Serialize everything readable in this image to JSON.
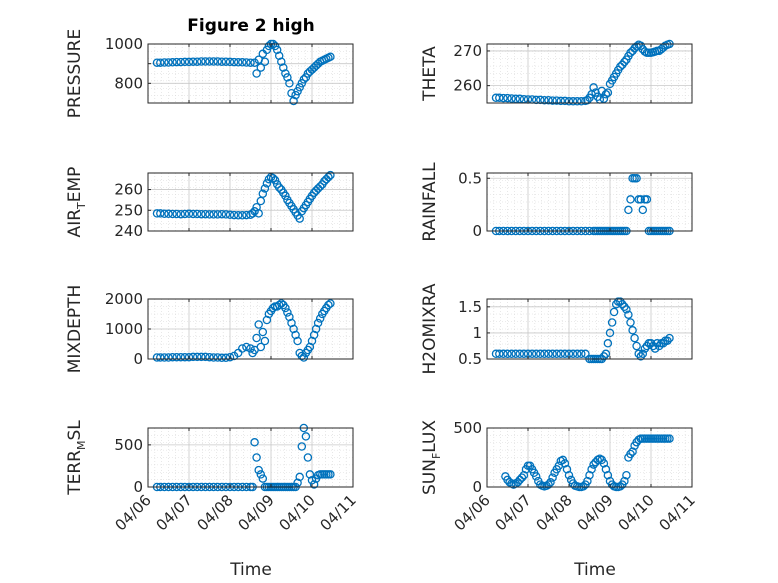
{
  "figure": {
    "title": "Figure 2 high",
    "xlabel": "Time",
    "marker_color": "#0072BD"
  },
  "chart_data": [
    {
      "type": "scatter",
      "ylabel": "PRESSURE",
      "ylim": [
        700,
        1000
      ],
      "yticks": [
        800,
        900,
        1000
      ],
      "ytick_labels": [
        "800",
        "",
        "1000"
      ],
      "xlim": [
        "04/06",
        "04/11"
      ],
      "xticks": [
        "04/06",
        "04/07",
        "04/08",
        "04/09",
        "04/10",
        "04/11"
      ],
      "grid": true,
      "minor_grid": true,
      "x": [
        6.22,
        6.3,
        6.4,
        6.5,
        6.6,
        6.7,
        6.8,
        6.9,
        7.0,
        7.1,
        7.2,
        7.3,
        7.4,
        7.5,
        7.6,
        7.7,
        7.8,
        7.9,
        8.0,
        8.1,
        8.2,
        8.3,
        8.4,
        8.5,
        8.6,
        8.65,
        8.7,
        8.75,
        8.8,
        8.85,
        8.9,
        8.95,
        9.0,
        9.05,
        9.1,
        9.15,
        9.2,
        9.25,
        9.3,
        9.35,
        9.4,
        9.45,
        9.5,
        9.55,
        9.6,
        9.65,
        9.7,
        9.75,
        9.8,
        9.85,
        9.9,
        9.95,
        10.0,
        10.05,
        10.1,
        10.15,
        10.2,
        10.25,
        10.3,
        10.35,
        10.4,
        10.45
      ],
      "y": [
        905,
        905,
        906,
        906,
        907,
        908,
        908,
        909,
        909,
        910,
        910,
        911,
        911,
        911,
        911,
        911,
        910,
        910,
        909,
        908,
        907,
        907,
        906,
        905,
        905,
        850,
        920,
        880,
        950,
        910,
        970,
        990,
        1000,
        1000,
        990,
        970,
        940,
        910,
        880,
        850,
        830,
        800,
        750,
        710,
        740,
        760,
        780,
        800,
        820,
        830,
        850,
        860,
        870,
        880,
        890,
        900,
        910,
        915,
        920,
        925,
        930,
        935
      ]
    },
    {
      "type": "scatter",
      "ylabel": "THETA",
      "ylim": [
        255,
        272
      ],
      "yticks": [
        260,
        270
      ],
      "ytick_labels": [
        "260",
        "270"
      ],
      "xlim": [
        "04/06",
        "04/11"
      ],
      "xticks": [
        "04/06",
        "04/07",
        "04/08",
        "04/09",
        "04/10",
        "04/11"
      ],
      "grid": true,
      "minor_grid": true,
      "x": [
        6.22,
        6.3,
        6.4,
        6.5,
        6.6,
        6.7,
        6.8,
        6.9,
        7.0,
        7.1,
        7.2,
        7.3,
        7.4,
        7.5,
        7.6,
        7.7,
        7.8,
        7.9,
        8.0,
        8.1,
        8.2,
        8.3,
        8.4,
        8.45,
        8.5,
        8.55,
        8.6,
        8.65,
        8.7,
        8.75,
        8.8,
        8.85,
        8.9,
        8.95,
        9.0,
        9.05,
        9.1,
        9.15,
        9.2,
        9.25,
        9.3,
        9.35,
        9.4,
        9.45,
        9.5,
        9.55,
        9.6,
        9.65,
        9.7,
        9.75,
        9.8,
        9.85,
        9.9,
        9.95,
        10.0,
        10.05,
        10.1,
        10.15,
        10.2,
        10.25,
        10.3,
        10.35,
        10.4,
        10.45
      ],
      "y": [
        256.5,
        256.5,
        256.4,
        256.4,
        256.3,
        256.2,
        256.2,
        256.1,
        256.0,
        256.0,
        255.9,
        255.9,
        255.8,
        255.8,
        255.7,
        255.7,
        255.6,
        255.6,
        255.5,
        255.5,
        255.5,
        255.5,
        255.6,
        255.8,
        256.5,
        257.5,
        259.5,
        258.0,
        256.8,
        256.0,
        258.5,
        256.2,
        257.5,
        258.0,
        260.5,
        261.5,
        262.5,
        263.5,
        264.5,
        265.5,
        266.0,
        266.8,
        267.5,
        268.5,
        269.5,
        270.0,
        270.8,
        271.3,
        271.8,
        271.5,
        270.5,
        269.8,
        269.5,
        269.5,
        269.5,
        269.6,
        269.8,
        270.0,
        270.0,
        270.5,
        271.0,
        271.5,
        271.8,
        272.0
      ]
    },
    {
      "type": "scatter",
      "ylabel": "AIR_TEMP",
      "ylim": [
        240,
        268
      ],
      "yticks": [
        240,
        250,
        260
      ],
      "ytick_labels": [
        "240",
        "250",
        "260"
      ],
      "xlim": [
        "04/06",
        "04/11"
      ],
      "xticks": [
        "04/06",
        "04/07",
        "04/08",
        "04/09",
        "04/10",
        "04/11"
      ],
      "grid": true,
      "minor_grid": true,
      "x": [
        6.22,
        6.3,
        6.4,
        6.5,
        6.6,
        6.7,
        6.8,
        6.9,
        7.0,
        7.1,
        7.2,
        7.3,
        7.4,
        7.5,
        7.6,
        7.7,
        7.8,
        7.9,
        8.0,
        8.1,
        8.2,
        8.3,
        8.4,
        8.5,
        8.55,
        8.6,
        8.65,
        8.7,
        8.75,
        8.8,
        8.85,
        8.9,
        8.95,
        9.0,
        9.05,
        9.1,
        9.15,
        9.2,
        9.25,
        9.3,
        9.35,
        9.4,
        9.45,
        9.5,
        9.55,
        9.6,
        9.65,
        9.7,
        9.75,
        9.8,
        9.85,
        9.9,
        9.95,
        10.0,
        10.05,
        10.1,
        10.15,
        10.2,
        10.25,
        10.3,
        10.35,
        10.4,
        10.45
      ],
      "y": [
        248.5,
        248.5,
        248.3,
        248.3,
        248.2,
        248.2,
        248.1,
        248.2,
        248.3,
        248.2,
        248.2,
        248.1,
        248.1,
        248.0,
        248.0,
        248.0,
        248.1,
        248.0,
        247.8,
        247.7,
        247.6,
        247.6,
        247.7,
        247.8,
        248.5,
        249.5,
        251.5,
        248.5,
        254.5,
        258.0,
        260.5,
        263.0,
        265.0,
        266.0,
        265.5,
        264.5,
        262.5,
        261.0,
        260.0,
        258.5,
        257.0,
        255.0,
        253.5,
        252.0,
        250.5,
        249.0,
        247.5,
        246.0,
        249.5,
        251.0,
        252.5,
        254.0,
        255.5,
        257.0,
        258.5,
        259.5,
        260.5,
        261.5,
        262.5,
        264.0,
        265.0,
        266.0,
        267.0
      ]
    },
    {
      "type": "scatter",
      "ylabel": "RAINFALL",
      "ylim": [
        0,
        0.55
      ],
      "yticks": [
        0,
        0.5
      ],
      "ytick_labels": [
        "0",
        "0.5"
      ],
      "xlim": [
        "04/06",
        "04/11"
      ],
      "xticks": [
        "04/06",
        "04/07",
        "04/08",
        "04/09",
        "04/10",
        "04/11"
      ],
      "grid": true,
      "minor_grid": true,
      "x": [
        6.22,
        6.3,
        6.4,
        6.5,
        6.6,
        6.7,
        6.8,
        6.9,
        7.0,
        7.1,
        7.2,
        7.3,
        7.4,
        7.5,
        7.6,
        7.7,
        7.8,
        7.9,
        8.0,
        8.1,
        8.2,
        8.3,
        8.4,
        8.5,
        8.6,
        8.65,
        8.7,
        8.75,
        8.8,
        8.85,
        8.9,
        8.95,
        9.0,
        9.05,
        9.1,
        9.15,
        9.2,
        9.25,
        9.3,
        9.35,
        9.4,
        9.45,
        9.5,
        9.55,
        9.6,
        9.65,
        9.7,
        9.75,
        9.8,
        9.85,
        9.9,
        9.95,
        10.0,
        10.05,
        10.1,
        10.15,
        10.2,
        10.25,
        10.3,
        10.35,
        10.4,
        10.45
      ],
      "y": [
        0,
        0,
        0,
        0,
        0,
        0,
        0,
        0,
        0,
        0,
        0,
        0,
        0,
        0,
        0,
        0,
        0,
        0,
        0,
        0,
        0,
        0,
        0,
        0,
        0,
        0,
        0,
        0,
        0,
        0,
        0,
        0,
        0,
        0,
        0,
        0,
        0,
        0,
        0,
        0,
        0,
        0.2,
        0.3,
        0.5,
        0.5,
        0.5,
        0.3,
        0.3,
        0.2,
        0.3,
        0.3,
        0,
        0,
        0,
        0,
        0,
        0,
        0,
        0,
        0,
        0,
        0
      ]
    },
    {
      "type": "scatter",
      "ylabel": "MIXDEPTH",
      "ylim": [
        0,
        2000
      ],
      "yticks": [
        0,
        1000,
        2000
      ],
      "ytick_labels": [
        "0",
        "1000",
        "2000"
      ],
      "xlim": [
        "04/06",
        "04/11"
      ],
      "xticks": [
        "04/06",
        "04/07",
        "04/08",
        "04/09",
        "04/10",
        "04/11"
      ],
      "grid": true,
      "minor_grid": true,
      "x": [
        6.22,
        6.3,
        6.4,
        6.5,
        6.6,
        6.7,
        6.8,
        6.9,
        7.0,
        7.1,
        7.2,
        7.3,
        7.4,
        7.5,
        7.6,
        7.7,
        7.8,
        7.9,
        8.0,
        8.1,
        8.2,
        8.3,
        8.4,
        8.5,
        8.55,
        8.6,
        8.65,
        8.7,
        8.75,
        8.8,
        8.85,
        8.9,
        8.95,
        9.0,
        9.05,
        9.1,
        9.15,
        9.2,
        9.25,
        9.3,
        9.35,
        9.4,
        9.45,
        9.5,
        9.55,
        9.6,
        9.65,
        9.7,
        9.75,
        9.8,
        9.85,
        9.9,
        9.95,
        10.0,
        10.05,
        10.1,
        10.15,
        10.2,
        10.25,
        10.3,
        10.35,
        10.4,
        10.45
      ],
      "y": [
        50,
        50,
        50,
        50,
        60,
        60,
        60,
        60,
        60,
        70,
        70,
        70,
        70,
        60,
        50,
        50,
        40,
        40,
        60,
        100,
        200,
        350,
        400,
        350,
        200,
        300,
        700,
        1150,
        400,
        900,
        600,
        1300,
        1500,
        1600,
        1700,
        1750,
        1750,
        1800,
        1850,
        1800,
        1700,
        1550,
        1400,
        1200,
        1000,
        800,
        600,
        200,
        100,
        50,
        200,
        300,
        400,
        600,
        800,
        1000,
        1200,
        1350,
        1500,
        1600,
        1700,
        1800,
        1850
      ]
    },
    {
      "type": "scatter",
      "ylabel": "H2OMIXRA",
      "ylim": [
        0.5,
        1.65
      ],
      "yticks": [
        0.5,
        1,
        1.5
      ],
      "ytick_labels": [
        "0.5",
        "1",
        "1.5"
      ],
      "xlim": [
        "04/06",
        "04/11"
      ],
      "xticks": [
        "04/06",
        "04/07",
        "04/08",
        "04/09",
        "04/10",
        "04/11"
      ],
      "grid": true,
      "minor_grid": true,
      "x": [
        6.22,
        6.3,
        6.4,
        6.5,
        6.6,
        6.7,
        6.8,
        6.9,
        7.0,
        7.1,
        7.2,
        7.3,
        7.4,
        7.5,
        7.6,
        7.7,
        7.8,
        7.9,
        8.0,
        8.1,
        8.2,
        8.3,
        8.4,
        8.5,
        8.55,
        8.6,
        8.65,
        8.7,
        8.75,
        8.8,
        8.85,
        8.9,
        8.95,
        9.0,
        9.05,
        9.1,
        9.15,
        9.2,
        9.25,
        9.3,
        9.35,
        9.4,
        9.45,
        9.5,
        9.55,
        9.6,
        9.65,
        9.7,
        9.75,
        9.8,
        9.85,
        9.9,
        9.95,
        10.0,
        10.05,
        10.1,
        10.15,
        10.2,
        10.25,
        10.3,
        10.35,
        10.4,
        10.45
      ],
      "y": [
        0.6,
        0.6,
        0.6,
        0.6,
        0.6,
        0.6,
        0.6,
        0.6,
        0.6,
        0.6,
        0.6,
        0.6,
        0.6,
        0.6,
        0.6,
        0.6,
        0.6,
        0.6,
        0.6,
        0.6,
        0.6,
        0.6,
        0.6,
        0.5,
        0.5,
        0.5,
        0.5,
        0.5,
        0.5,
        0.5,
        0.55,
        0.6,
        0.8,
        1.0,
        1.2,
        1.4,
        1.55,
        1.6,
        1.6,
        1.55,
        1.5,
        1.45,
        1.35,
        1.2,
        1.05,
        0.9,
        0.75,
        0.6,
        0.55,
        0.6,
        0.7,
        0.75,
        0.8,
        0.8,
        0.75,
        0.7,
        0.8,
        0.75,
        0.8,
        0.8,
        0.85,
        0.85,
        0.9
      ]
    },
    {
      "type": "scatter",
      "ylabel": "TERR_MSL",
      "ylim": [
        0,
        700
      ],
      "yticks": [
        0,
        500
      ],
      "ytick_labels": [
        "0",
        "500"
      ],
      "xlim": [
        "04/06",
        "04/11"
      ],
      "xticks": [
        "04/06",
        "04/07",
        "04/08",
        "04/09",
        "04/10",
        "04/11"
      ],
      "xtick_labels": [
        "04/06",
        "04/07",
        "04/08",
        "04/09",
        "04/10",
        "04/11"
      ],
      "grid": true,
      "minor_grid": true,
      "x": [
        6.22,
        6.3,
        6.4,
        6.5,
        6.6,
        6.7,
        6.8,
        6.9,
        7.0,
        7.1,
        7.2,
        7.3,
        7.4,
        7.5,
        7.6,
        7.7,
        7.8,
        7.9,
        8.0,
        8.1,
        8.2,
        8.3,
        8.4,
        8.5,
        8.55,
        8.6,
        8.65,
        8.7,
        8.75,
        8.8,
        8.85,
        8.9,
        8.95,
        9.0,
        9.05,
        9.1,
        9.15,
        9.2,
        9.25,
        9.3,
        9.35,
        9.4,
        9.45,
        9.5,
        9.55,
        9.6,
        9.65,
        9.7,
        9.75,
        9.8,
        9.85,
        9.9,
        9.95,
        10.0,
        10.05,
        10.1,
        10.15,
        10.2,
        10.25,
        10.3,
        10.35,
        10.4,
        10.45
      ],
      "y": [
        0,
        0,
        0,
        0,
        0,
        0,
        0,
        0,
        0,
        0,
        0,
        0,
        0,
        0,
        0,
        0,
        0,
        0,
        0,
        0,
        0,
        0,
        0,
        0,
        0,
        530,
        350,
        200,
        150,
        100,
        0,
        0,
        0,
        0,
        0,
        0,
        0,
        0,
        0,
        0,
        0,
        0,
        0,
        0,
        0,
        0,
        50,
        120,
        480,
        700,
        600,
        350,
        150,
        80,
        30,
        100,
        140,
        150,
        150,
        150,
        150,
        150,
        150
      ]
    },
    {
      "type": "scatter",
      "ylabel": "SUN_FLUX",
      "ylim": [
        0,
        500
      ],
      "yticks": [
        0,
        500
      ],
      "ytick_labels": [
        "0",
        "500"
      ],
      "xlim": [
        "04/06",
        "04/11"
      ],
      "xticks": [
        "04/06",
        "04/07",
        "04/08",
        "04/09",
        "04/10",
        "04/11"
      ],
      "xtick_labels": [
        "04/06",
        "04/07",
        "04/08",
        "04/09",
        "04/10",
        "04/11"
      ],
      "grid": true,
      "minor_grid": true,
      "x": [
        6.45,
        6.5,
        6.55,
        6.6,
        6.65,
        6.7,
        6.75,
        6.8,
        6.85,
        6.9,
        6.95,
        7.0,
        7.05,
        7.1,
        7.15,
        7.2,
        7.25,
        7.3,
        7.35,
        7.4,
        7.45,
        7.5,
        7.55,
        7.6,
        7.65,
        7.7,
        7.75,
        7.8,
        7.85,
        7.9,
        7.95,
        8.0,
        8.05,
        8.1,
        8.15,
        8.2,
        8.25,
        8.3,
        8.35,
        8.4,
        8.45,
        8.5,
        8.55,
        8.6,
        8.65,
        8.7,
        8.75,
        8.8,
        8.85,
        8.9,
        8.95,
        9.0,
        9.05,
        9.1,
        9.15,
        9.2,
        9.25,
        9.3,
        9.35,
        9.4,
        9.45,
        9.5,
        9.55,
        9.6,
        9.65,
        9.7,
        9.75,
        9.8,
        9.85,
        9.9,
        9.95,
        10.0,
        10.05,
        10.1,
        10.15,
        10.2,
        10.25,
        10.3,
        10.35,
        10.4,
        10.45
      ],
      "y": [
        90,
        60,
        40,
        30,
        20,
        30,
        40,
        60,
        80,
        100,
        150,
        180,
        180,
        150,
        120,
        90,
        50,
        20,
        10,
        5,
        10,
        20,
        40,
        80,
        120,
        150,
        180,
        220,
        230,
        200,
        150,
        100,
        60,
        30,
        10,
        5,
        0,
        0,
        5,
        20,
        50,
        100,
        150,
        190,
        210,
        230,
        240,
        230,
        200,
        150,
        100,
        50,
        20,
        5,
        0,
        0,
        5,
        20,
        50,
        100,
        250,
        280,
        300,
        350,
        380,
        400,
        410,
        410,
        410,
        410,
        410,
        410,
        410,
        410,
        410,
        410,
        410,
        410,
        410,
        410,
        410
      ]
    }
  ]
}
